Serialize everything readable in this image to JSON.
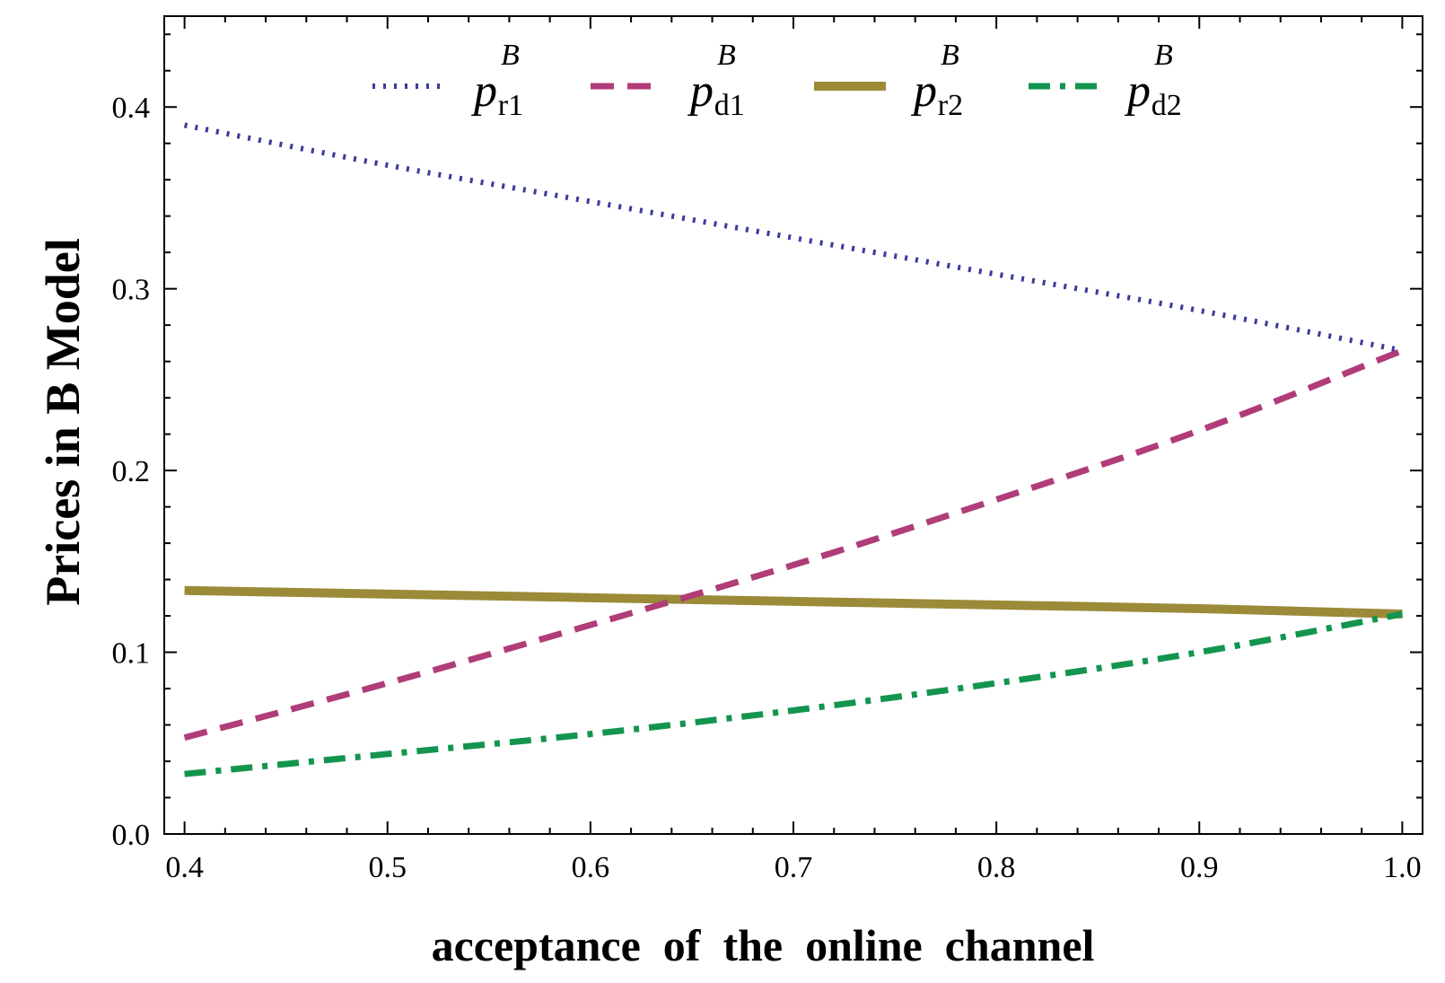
{
  "chart_data": {
    "type": "line",
    "title": "",
    "xlabel": "acceptance  of  the  online  channel",
    "ylabel": "Prices in B Model",
    "xlim": [
      0.39,
      1.01
    ],
    "ylim": [
      0.0,
      0.45
    ],
    "xticks": [
      0.4,
      0.5,
      0.6,
      0.7,
      0.8,
      0.9,
      1.0
    ],
    "xtick_labels": [
      "0.4",
      "0.5",
      "0.6",
      "0.7",
      "0.8",
      "0.9",
      "1.0"
    ],
    "yticks": [
      0.0,
      0.1,
      0.2,
      0.3,
      0.4
    ],
    "ytick_labels": [
      "0.0",
      "0.1",
      "0.2",
      "0.3",
      "0.4"
    ],
    "grid": false,
    "legend_position": "top",
    "series": [
      {
        "key": "pr1",
        "name_base": "p",
        "name_sup": "B",
        "name_sub": "r1",
        "color": "#3b3b9b",
        "style": "dotted",
        "x": [
          0.4,
          0.5,
          0.6,
          0.7,
          0.8,
          0.9,
          1.0
        ],
        "y": [
          0.39,
          0.368,
          0.348,
          0.328,
          0.308,
          0.288,
          0.266
        ]
      },
      {
        "key": "pd1",
        "name_base": "p",
        "name_sup": "B",
        "name_sub": "d1",
        "color": "#b03c78",
        "style": "dashed",
        "x": [
          0.4,
          0.5,
          0.6,
          0.7,
          0.8,
          0.9,
          1.0
        ],
        "y": [
          0.053,
          0.083,
          0.115,
          0.148,
          0.184,
          0.222,
          0.266
        ]
      },
      {
        "key": "pr2",
        "name_base": "p",
        "name_sup": "B",
        "name_sub": "r2",
        "color": "#9b8a38",
        "style": "solid",
        "x": [
          0.4,
          0.5,
          0.6,
          0.7,
          0.8,
          0.9,
          1.0
        ],
        "y": [
          0.134,
          0.132,
          0.13,
          0.128,
          0.126,
          0.124,
          0.121
        ]
      },
      {
        "key": "pd2",
        "name_base": "p",
        "name_sup": "B",
        "name_sub": "d2",
        "color": "#13954f",
        "style": "dashdot",
        "x": [
          0.4,
          0.5,
          0.6,
          0.7,
          0.8,
          0.9,
          1.0
        ],
        "y": [
          0.033,
          0.044,
          0.055,
          0.068,
          0.083,
          0.1,
          0.121
        ]
      }
    ]
  }
}
